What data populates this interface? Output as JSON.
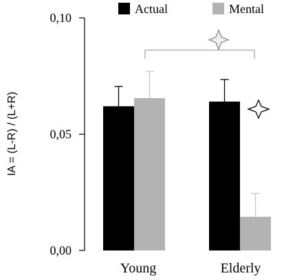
{
  "chart_data": {
    "type": "bar",
    "title": "",
    "xlabel": "",
    "ylabel": "IA = (L-R) / (L+R)",
    "categories": [
      "Young",
      "Elderly"
    ],
    "series": [
      {
        "name": "Actual",
        "color": "#000000",
        "values": [
          0.062,
          0.064
        ],
        "errors": [
          0.0085,
          0.0095
        ]
      },
      {
        "name": "Mental",
        "color": "#b3b3b3",
        "values": [
          0.0655,
          0.0145
        ],
        "errors": [
          0.0115,
          0.01
        ]
      }
    ],
    "ylim": [
      0,
      0.1
    ],
    "yticks": [
      {
        "value": 0,
        "label": "0,00"
      },
      {
        "value": 0.05,
        "label": "0,05"
      },
      {
        "value": 0.1,
        "label": "0,10"
      }
    ],
    "grid": false,
    "legend": "top",
    "annotations": [
      {
        "type": "significance-star",
        "target": "Elderly Actual vs Elderly Mental"
      },
      {
        "type": "significance-bracket-star",
        "target": "Young Mental vs Elderly Mental"
      }
    ]
  }
}
